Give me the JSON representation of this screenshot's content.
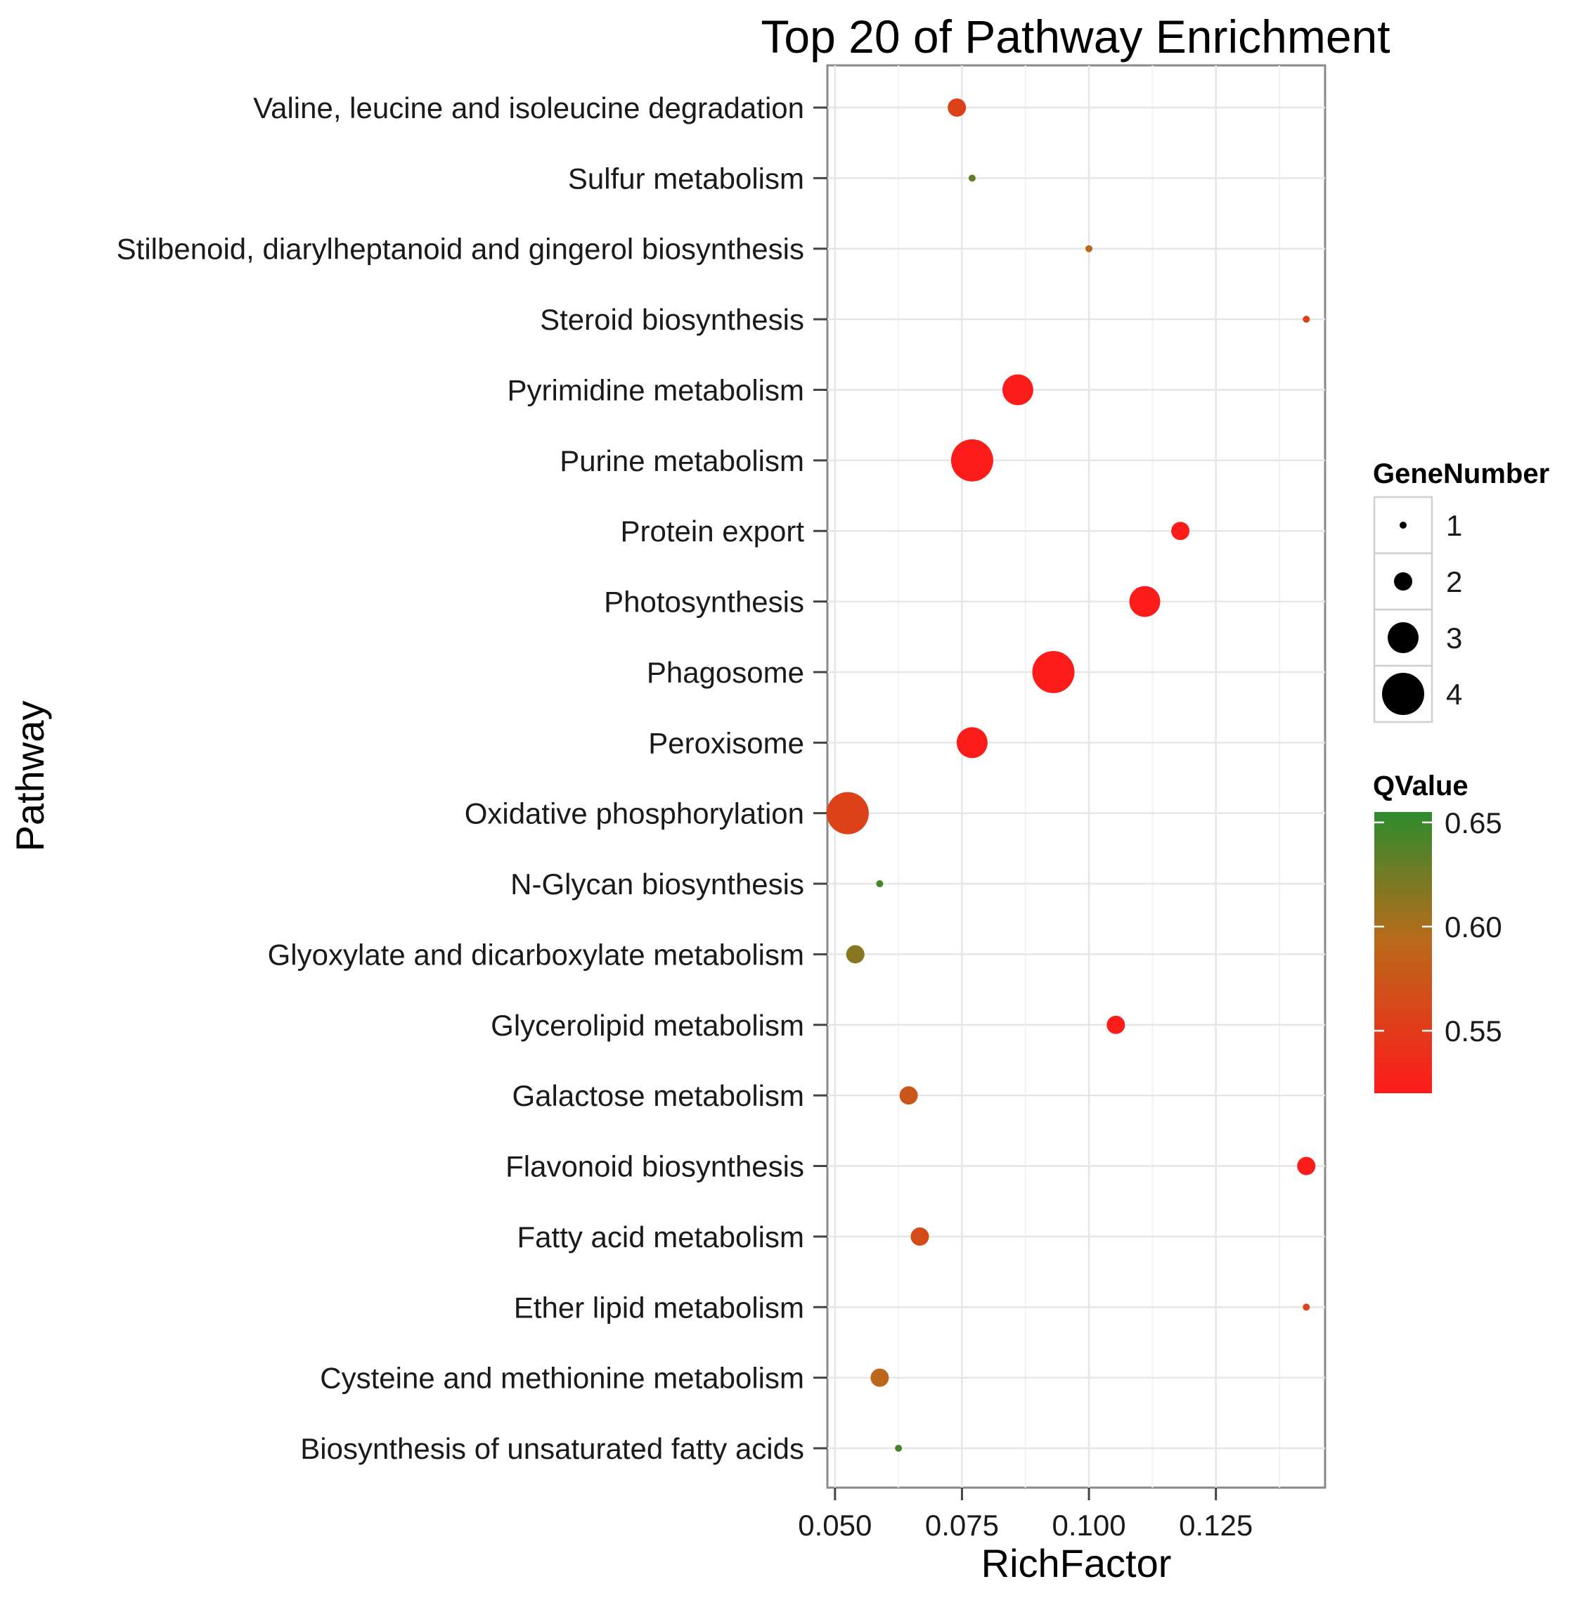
{
  "chart_data": {
    "type": "scatter",
    "title": "Top 20 of Pathway Enrichment",
    "xlabel": "RichFactor",
    "ylabel": "Pathway",
    "xlim": [
      0.0485,
      0.1465
    ],
    "xticks": [
      "0.050",
      "0.075",
      "0.100",
      "0.125"
    ],
    "xtick_values": [
      0.05,
      0.075,
      0.1,
      0.125
    ],
    "grid": true,
    "size_legend": {
      "title": "GeneNumber",
      "values": [
        1,
        2,
        3,
        4
      ],
      "labels": [
        "1",
        "2",
        "3",
        "4"
      ]
    },
    "color_legend": {
      "title": "QValue",
      "range": [
        0.52,
        0.655
      ],
      "ticks": [
        "0.65",
        "0.60",
        "0.55"
      ],
      "tick_values": [
        0.65,
        0.6,
        0.55
      ],
      "low_color": "#ff1a1a",
      "mid_color": "#b86b1a",
      "high_color": "#2e8b2e"
    },
    "points": [
      {
        "pathway": "Valine, leucine and isoleucine degradation",
        "rich_factor": 0.074,
        "gene_number": 2,
        "qvalue": 0.556
      },
      {
        "pathway": "Sulfur metabolism",
        "rich_factor": 0.077,
        "gene_number": 1,
        "qvalue": 0.635
      },
      {
        "pathway": "Stilbenoid, diarylheptanoid and gingerol biosynthesis",
        "rich_factor": 0.1,
        "gene_number": 1,
        "qvalue": 0.59
      },
      {
        "pathway": "Steroid biosynthesis",
        "rich_factor": 0.1428,
        "gene_number": 1,
        "qvalue": 0.556
      },
      {
        "pathway": "Pyrimidine metabolism",
        "rich_factor": 0.086,
        "gene_number": 3,
        "qvalue": 0.523
      },
      {
        "pathway": "Purine metabolism",
        "rich_factor": 0.077,
        "gene_number": 4,
        "qvalue": 0.523
      },
      {
        "pathway": "Protein export",
        "rich_factor": 0.118,
        "gene_number": 2,
        "qvalue": 0.523
      },
      {
        "pathway": "Photosynthesis",
        "rich_factor": 0.111,
        "gene_number": 3,
        "qvalue": 0.523
      },
      {
        "pathway": "Phagosome",
        "rich_factor": 0.093,
        "gene_number": 4,
        "qvalue": 0.523
      },
      {
        "pathway": "Peroxisome",
        "rich_factor": 0.077,
        "gene_number": 3,
        "qvalue": 0.523
      },
      {
        "pathway": "Oxidative phosphorylation",
        "rich_factor": 0.0525,
        "gene_number": 4,
        "qvalue": 0.556
      },
      {
        "pathway": "N-Glycan biosynthesis",
        "rich_factor": 0.0588,
        "gene_number": 1,
        "qvalue": 0.645
      },
      {
        "pathway": "Glyoxylate and dicarboxylate metabolism",
        "rich_factor": 0.054,
        "gene_number": 2,
        "qvalue": 0.615
      },
      {
        "pathway": "Glycerolipid metabolism",
        "rich_factor": 0.1053,
        "gene_number": 2,
        "qvalue": 0.523
      },
      {
        "pathway": "Galactose metabolism",
        "rich_factor": 0.0645,
        "gene_number": 2,
        "qvalue": 0.575
      },
      {
        "pathway": "Flavonoid biosynthesis",
        "rich_factor": 0.1428,
        "gene_number": 2,
        "qvalue": 0.523
      },
      {
        "pathway": "Fatty acid metabolism",
        "rich_factor": 0.0667,
        "gene_number": 2,
        "qvalue": 0.565
      },
      {
        "pathway": "Ether lipid metabolism",
        "rich_factor": 0.1428,
        "gene_number": 1,
        "qvalue": 0.556
      },
      {
        "pathway": "Cysteine and methionine metabolism",
        "rich_factor": 0.0588,
        "gene_number": 2,
        "qvalue": 0.59
      },
      {
        "pathway": "Biosynthesis of unsaturated fatty acids",
        "rich_factor": 0.0625,
        "gene_number": 1,
        "qvalue": 0.645
      }
    ]
  }
}
